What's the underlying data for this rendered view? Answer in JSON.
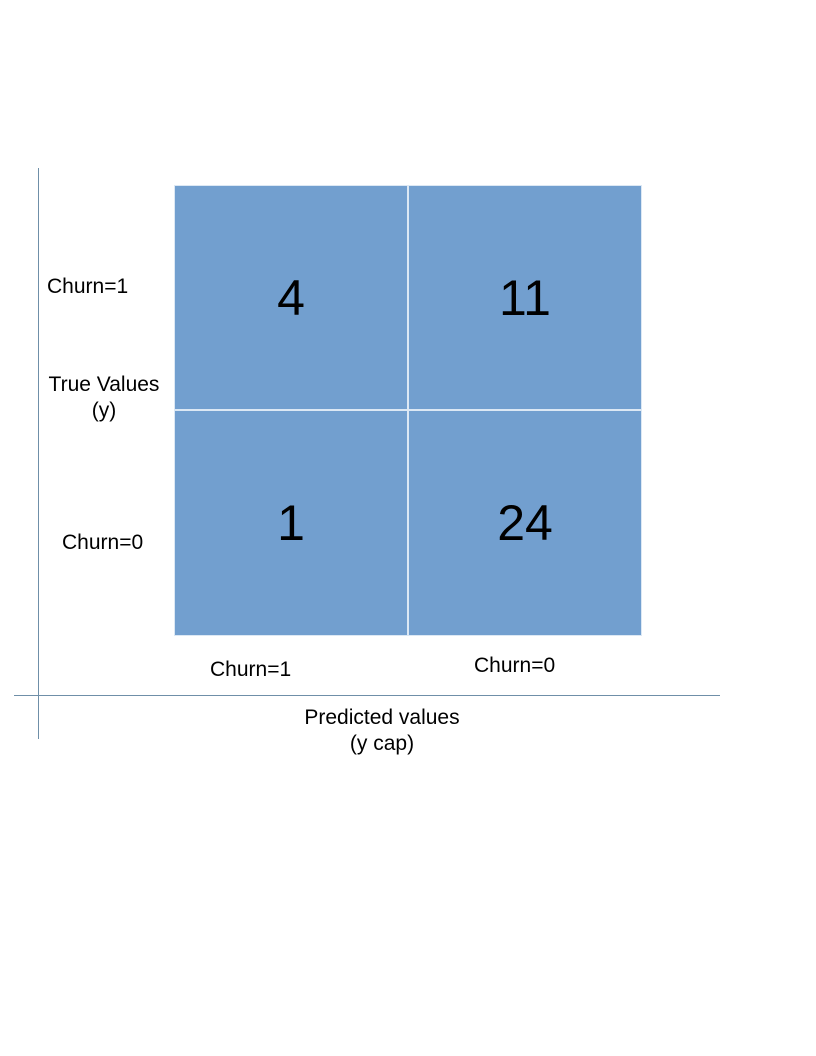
{
  "labels": {
    "true_title_line_1": "True Values",
    "true_title_line_2": "(y)",
    "predicted_title_line_1": "Predicted values",
    "predicted_title_line_2": "(y cap)",
    "row_churn_1": "Churn=1",
    "row_churn_0": "Churn=0",
    "col_churn_1": "Churn=1",
    "col_churn_0": "Churn=0"
  },
  "matrix": {
    "cells": [
      [
        "4",
        "11"
      ],
      [
        "1",
        "24"
      ]
    ]
  },
  "colors": {
    "cell_fill": "#729fcf",
    "cell_border": "#dce8f4",
    "axis_line": "#6f8fa8",
    "text": "#000000"
  }
}
